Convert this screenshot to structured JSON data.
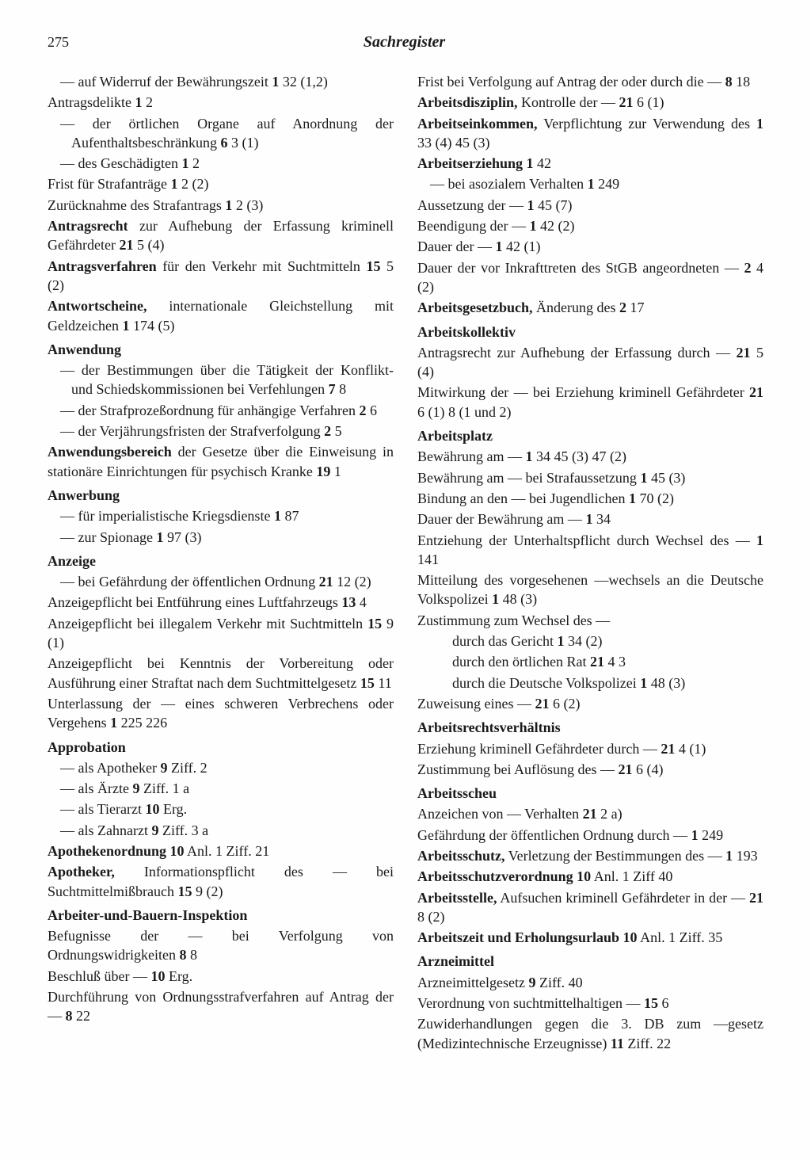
{
  "page_number": "275",
  "title": "Sachregister",
  "typography": {
    "body_fontsize_pt": 14,
    "title_fontsize_pt": 15,
    "line_height": 1.35
  },
  "colors": {
    "text": "#1a1a1a",
    "background": "#fefefe"
  },
  "left_col": [
    {
      "style": "indent",
      "segs": [
        {
          "t": "—  auf Widerruf der Bewährungszeit "
        },
        {
          "b": true,
          "t": "1"
        },
        {
          "t": " 32 (1,2)"
        }
      ]
    },
    {
      "segs": [
        {
          "t": "Antragsdelikte "
        },
        {
          "b": true,
          "t": "1"
        },
        {
          "t": " 2"
        }
      ]
    },
    {
      "style": "indent",
      "segs": [
        {
          "t": "— der örtlichen Organe auf Anordnung der Aufenthaltsbeschränkung "
        },
        {
          "b": true,
          "t": "6"
        },
        {
          "t": " 3 (1)"
        }
      ]
    },
    {
      "style": "indent",
      "segs": [
        {
          "t": "— des Geschädigten "
        },
        {
          "b": true,
          "t": "1"
        },
        {
          "t": " 2"
        }
      ]
    },
    {
      "segs": [
        {
          "t": "Frist für Strafanträge "
        },
        {
          "b": true,
          "t": "1"
        },
        {
          "t": " 2 (2)"
        }
      ]
    },
    {
      "segs": [
        {
          "t": "Zurücknahme des Strafantrags "
        },
        {
          "b": true,
          "t": "1"
        },
        {
          "t": " 2 (3)"
        }
      ]
    },
    {
      "segs": [
        {
          "b": true,
          "t": "Antragsrecht"
        },
        {
          "t": " zur Aufhebung der Erfassung kriminell Gefährdeter "
        },
        {
          "b": true,
          "t": "21"
        },
        {
          "t": " 5 (4)"
        }
      ]
    },
    {
      "segs": [
        {
          "b": true,
          "t": "Antragsverfahren"
        },
        {
          "t": " für den Verkehr mit Suchtmitteln "
        },
        {
          "b": true,
          "t": "15"
        },
        {
          "t": " 5 (2)"
        }
      ]
    },
    {
      "segs": [
        {
          "b": true,
          "t": "Antwortscheine,"
        },
        {
          "t": " internationale Gleichstellung mit Geldzeichen "
        },
        {
          "b": true,
          "t": "1"
        },
        {
          "t": " 174 (5)"
        }
      ]
    },
    {
      "style": "heading",
      "segs": [
        {
          "b": true,
          "t": "Anwendung"
        }
      ]
    },
    {
      "style": "indent",
      "segs": [
        {
          "t": "— der Bestimmungen über die Tätigkeit der Konflikt- und Schiedskommissionen bei Verfehlungen "
        },
        {
          "b": true,
          "t": "7"
        },
        {
          "t": " 8"
        }
      ]
    },
    {
      "style": "indent",
      "segs": [
        {
          "t": "— der Strafprozeßordnung für anhängige Verfahren "
        },
        {
          "b": true,
          "t": "2"
        },
        {
          "t": " 6"
        }
      ]
    },
    {
      "style": "indent",
      "segs": [
        {
          "t": "— der Verjährungsfristen der Strafverfolgung "
        },
        {
          "b": true,
          "t": "2"
        },
        {
          "t": " 5"
        }
      ]
    },
    {
      "segs": [
        {
          "b": true,
          "t": "Anwendungsbereich"
        },
        {
          "t": " der Gesetze über die Einweisung in stationäre Einrichtungen für psychisch Kranke "
        },
        {
          "b": true,
          "t": "19"
        },
        {
          "t": " 1"
        }
      ]
    },
    {
      "style": "heading",
      "segs": [
        {
          "b": true,
          "t": "Anwerbung"
        }
      ]
    },
    {
      "style": "indent",
      "segs": [
        {
          "t": "— für imperialistische Kriegsdienste "
        },
        {
          "b": true,
          "t": "1"
        },
        {
          "t": " 87"
        }
      ]
    },
    {
      "style": "indent",
      "segs": [
        {
          "t": "— zur Spionage "
        },
        {
          "b": true,
          "t": "1"
        },
        {
          "t": " 97 (3)"
        }
      ]
    },
    {
      "style": "heading",
      "segs": [
        {
          "b": true,
          "t": "Anzeige"
        }
      ]
    },
    {
      "style": "indent",
      "segs": [
        {
          "t": "— bei Gefährdung der öffentlichen Ordnung "
        },
        {
          "b": true,
          "t": "21"
        },
        {
          "t": " 12 (2)"
        }
      ]
    },
    {
      "segs": [
        {
          "t": "Anzeigepflicht bei Entführung eines Luftfahrzeugs "
        },
        {
          "b": true,
          "t": "13"
        },
        {
          "t": " 4"
        }
      ]
    },
    {
      "segs": [
        {
          "t": "Anzeigepflicht bei illegalem Verkehr mit Suchtmitteln "
        },
        {
          "b": true,
          "t": "15"
        },
        {
          "t": " 9 (1)"
        }
      ]
    },
    {
      "segs": [
        {
          "t": "Anzeigepflicht bei Kenntnis der Vorbereitung oder Ausführung einer Straftat nach dem Suchtmittelgesetz "
        },
        {
          "b": true,
          "t": "15"
        },
        {
          "t": " 11"
        }
      ]
    },
    {
      "segs": [
        {
          "t": "Unterlassung der — eines schweren Verbrechens oder Vergehens "
        },
        {
          "b": true,
          "t": "1"
        },
        {
          "t": " 225 226"
        }
      ]
    },
    {
      "style": "heading",
      "segs": [
        {
          "b": true,
          "t": "Approbation"
        }
      ]
    },
    {
      "style": "indent",
      "segs": [
        {
          "t": "— als Apotheker "
        },
        {
          "b": true,
          "t": "9"
        },
        {
          "t": " Ziff. 2"
        }
      ]
    },
    {
      "style": "indent",
      "segs": [
        {
          "t": "— als Ärzte "
        },
        {
          "b": true,
          "t": "9"
        },
        {
          "t": " Ziff. 1 a"
        }
      ]
    },
    {
      "style": "indent",
      "segs": [
        {
          "t": "— als Tierarzt "
        },
        {
          "b": true,
          "t": "10"
        },
        {
          "t": " Erg."
        }
      ]
    },
    {
      "style": "indent",
      "segs": [
        {
          "t": "— als Zahnarzt "
        },
        {
          "b": true,
          "t": "9"
        },
        {
          "t": " Ziff. 3 a"
        }
      ]
    },
    {
      "segs": [
        {
          "b": true,
          "t": "Apothekenordnung 10"
        },
        {
          "t": " Anl. 1 Ziff. 21"
        }
      ]
    },
    {
      "segs": [
        {
          "b": true,
          "t": "Apotheker,"
        },
        {
          "t": " Informationspflicht des — bei Suchtmittelmißbrauch "
        },
        {
          "b": true,
          "t": "15"
        },
        {
          "t": " 9 (2)"
        }
      ]
    },
    {
      "style": "heading",
      "segs": [
        {
          "b": true,
          "t": "Arbeiter-und-Bauern-Inspektion"
        }
      ]
    },
    {
      "segs": [
        {
          "t": "Befugnisse der — bei Verfolgung von Ordnungswidrigkeiten "
        },
        {
          "b": true,
          "t": "8"
        },
        {
          "t": " 8"
        }
      ]
    },
    {
      "segs": [
        {
          "t": "Beschluß über — "
        },
        {
          "b": true,
          "t": "10"
        },
        {
          "t": " Erg."
        }
      ]
    },
    {
      "segs": [
        {
          "t": "Durchführung von Ordnungsstrafverfahren auf Antrag der — "
        },
        {
          "b": true,
          "t": "8"
        },
        {
          "t": " 22"
        }
      ]
    }
  ],
  "right_col": [
    {
      "segs": [
        {
          "t": "Frist bei Verfolgung auf Antrag der oder durch die — "
        },
        {
          "b": true,
          "t": "8"
        },
        {
          "t": " 18"
        }
      ]
    },
    {
      "segs": [
        {
          "b": true,
          "t": "Arbeitsdisziplin,"
        },
        {
          "t": " Kontrolle der — "
        },
        {
          "b": true,
          "t": "21"
        },
        {
          "t": " 6 (1)"
        }
      ]
    },
    {
      "segs": [
        {
          "b": true,
          "t": "Arbeitseinkommen,"
        },
        {
          "t": " Verpflichtung zur Verwendung des "
        },
        {
          "b": true,
          "t": "1"
        },
        {
          "t": " 33 (4) 45 (3)"
        }
      ]
    },
    {
      "segs": [
        {
          "b": true,
          "t": "Arbeitserziehung 1"
        },
        {
          "t": " 42"
        }
      ]
    },
    {
      "style": "indent",
      "segs": [
        {
          "t": "— bei asozialem Verhalten "
        },
        {
          "b": true,
          "t": "1"
        },
        {
          "t": " 249"
        }
      ]
    },
    {
      "segs": [
        {
          "t": "Aussetzung der — "
        },
        {
          "b": true,
          "t": "1"
        },
        {
          "t": " 45 (7)"
        }
      ]
    },
    {
      "segs": [
        {
          "t": "Beendigung der — "
        },
        {
          "b": true,
          "t": "1"
        },
        {
          "t": " 42 (2)"
        }
      ]
    },
    {
      "segs": [
        {
          "t": "Dauer der — "
        },
        {
          "b": true,
          "t": "1"
        },
        {
          "t": " 42 (1)"
        }
      ]
    },
    {
      "segs": [
        {
          "t": "Dauer der vor Inkrafttreten des StGB angeordneten — "
        },
        {
          "b": true,
          "t": "2"
        },
        {
          "t": " 4 (2)"
        }
      ]
    },
    {
      "segs": [
        {
          "b": true,
          "t": "Arbeitsgesetzbuch,"
        },
        {
          "t": " Änderung des "
        },
        {
          "b": true,
          "t": "2"
        },
        {
          "t": " 17"
        }
      ]
    },
    {
      "style": "heading",
      "segs": [
        {
          "b": true,
          "t": "Arbeitskollektiv"
        }
      ]
    },
    {
      "segs": [
        {
          "t": "Antragsrecht zur Aufhebung der Erfassung durch — "
        },
        {
          "b": true,
          "t": "21"
        },
        {
          "t": " 5 (4)"
        }
      ]
    },
    {
      "segs": [
        {
          "t": "Mitwirkung der — bei Erziehung kriminell Gefährdeter "
        },
        {
          "b": true,
          "t": "21"
        },
        {
          "t": " 6 (1) 8 (1 und 2)"
        }
      ]
    },
    {
      "style": "heading",
      "segs": [
        {
          "b": true,
          "t": "Arbeitsplatz"
        }
      ]
    },
    {
      "segs": [
        {
          "t": "Bewährung am — "
        },
        {
          "b": true,
          "t": "1"
        },
        {
          "t": " 34 45 (3) 47 (2)"
        }
      ]
    },
    {
      "segs": [
        {
          "t": "Bewährung am — bei Strafaussetzung "
        },
        {
          "b": true,
          "t": "1"
        },
        {
          "t": " 45 (3)"
        }
      ]
    },
    {
      "segs": [
        {
          "t": "Bindung an den — bei Jugendlichen "
        },
        {
          "b": true,
          "t": "1"
        },
        {
          "t": " 70 (2)"
        }
      ]
    },
    {
      "segs": [
        {
          "t": "Dauer der Bewährung am — "
        },
        {
          "b": true,
          "t": "1"
        },
        {
          "t": " 34"
        }
      ]
    },
    {
      "segs": [
        {
          "t": "Entziehung der Unterhaltspflicht durch Wechsel des — "
        },
        {
          "b": true,
          "t": "1"
        },
        {
          "t": " 141"
        }
      ]
    },
    {
      "segs": [
        {
          "t": "Mitteilung des vorgesehenen —wechsels an die Deutsche Volkspolizei "
        },
        {
          "b": true,
          "t": "1"
        },
        {
          "t": " 48 (3)"
        }
      ]
    },
    {
      "segs": [
        {
          "t": "Zustimmung zum Wechsel des —"
        }
      ]
    },
    {
      "style": "subindent",
      "segs": [
        {
          "t": "durch das Gericht "
        },
        {
          "b": true,
          "t": "1"
        },
        {
          "t": " 34 (2)"
        }
      ]
    },
    {
      "style": "subindent",
      "segs": [
        {
          "t": "durch den örtlichen Rat "
        },
        {
          "b": true,
          "t": "21"
        },
        {
          "t": " 4 3"
        }
      ]
    },
    {
      "style": "subindent",
      "segs": [
        {
          "t": "durch die Deutsche Volkspolizei "
        },
        {
          "b": true,
          "t": "1"
        },
        {
          "t": " 48 (3)"
        }
      ]
    },
    {
      "segs": [
        {
          "t": "Zuweisung eines — "
        },
        {
          "b": true,
          "t": "21"
        },
        {
          "t": " 6 (2)"
        }
      ]
    },
    {
      "style": "heading",
      "segs": [
        {
          "b": true,
          "t": "Arbeitsrechtsverhältnis"
        }
      ]
    },
    {
      "segs": [
        {
          "t": "Erziehung kriminell Gefährdeter durch — "
        },
        {
          "b": true,
          "t": "21"
        },
        {
          "t": " 4 (1)"
        }
      ]
    },
    {
      "segs": [
        {
          "t": "Zustimmung bei Auflösung des — "
        },
        {
          "b": true,
          "t": "21"
        },
        {
          "t": " 6 (4)"
        }
      ]
    },
    {
      "style": "heading",
      "segs": [
        {
          "b": true,
          "t": "Arbeitsscheu"
        }
      ]
    },
    {
      "segs": [
        {
          "t": "Anzeichen von — Verhalten "
        },
        {
          "b": true,
          "t": "21"
        },
        {
          "t": " 2 a)"
        }
      ]
    },
    {
      "segs": [
        {
          "t": "Gefährdung der öffentlichen Ordnung durch — "
        },
        {
          "b": true,
          "t": "1"
        },
        {
          "t": " 249"
        }
      ]
    },
    {
      "segs": [
        {
          "b": true,
          "t": "Arbeitsschutz,"
        },
        {
          "t": " Verletzung der Bestimmungen des — "
        },
        {
          "b": true,
          "t": "1"
        },
        {
          "t": " 193"
        }
      ]
    },
    {
      "segs": [
        {
          "b": true,
          "t": "Arbeitsschutzverordnung 10"
        },
        {
          "t": " Anl. 1 Ziff 40"
        }
      ]
    },
    {
      "segs": [
        {
          "b": true,
          "t": "Arbeitsstelle,"
        },
        {
          "t": " Aufsuchen kriminell Gefährdeter in der — "
        },
        {
          "b": true,
          "t": "21"
        },
        {
          "t": " 8 (2)"
        }
      ]
    },
    {
      "segs": [
        {
          "b": true,
          "t": "Arbeitszeit und Erholungsurlaub 10"
        },
        {
          "t": " Anl. 1 Ziff. 35"
        }
      ]
    },
    {
      "style": "heading",
      "segs": [
        {
          "b": true,
          "t": "Arzneimittel"
        }
      ]
    },
    {
      "segs": [
        {
          "t": "Arzneimittelgesetz "
        },
        {
          "b": true,
          "t": "9"
        },
        {
          "t": " Ziff. 40"
        }
      ]
    },
    {
      "segs": [
        {
          "t": "Verordnung von suchtmittelhaltigen — "
        },
        {
          "b": true,
          "t": "15"
        },
        {
          "t": " 6"
        }
      ]
    },
    {
      "segs": [
        {
          "t": "Zuwiderhandlungen gegen die 3. DB zum —gesetz (Medizintechnische Erzeugnisse) "
        },
        {
          "b": true,
          "t": "11"
        },
        {
          "t": " Ziff. 22"
        }
      ]
    }
  ]
}
